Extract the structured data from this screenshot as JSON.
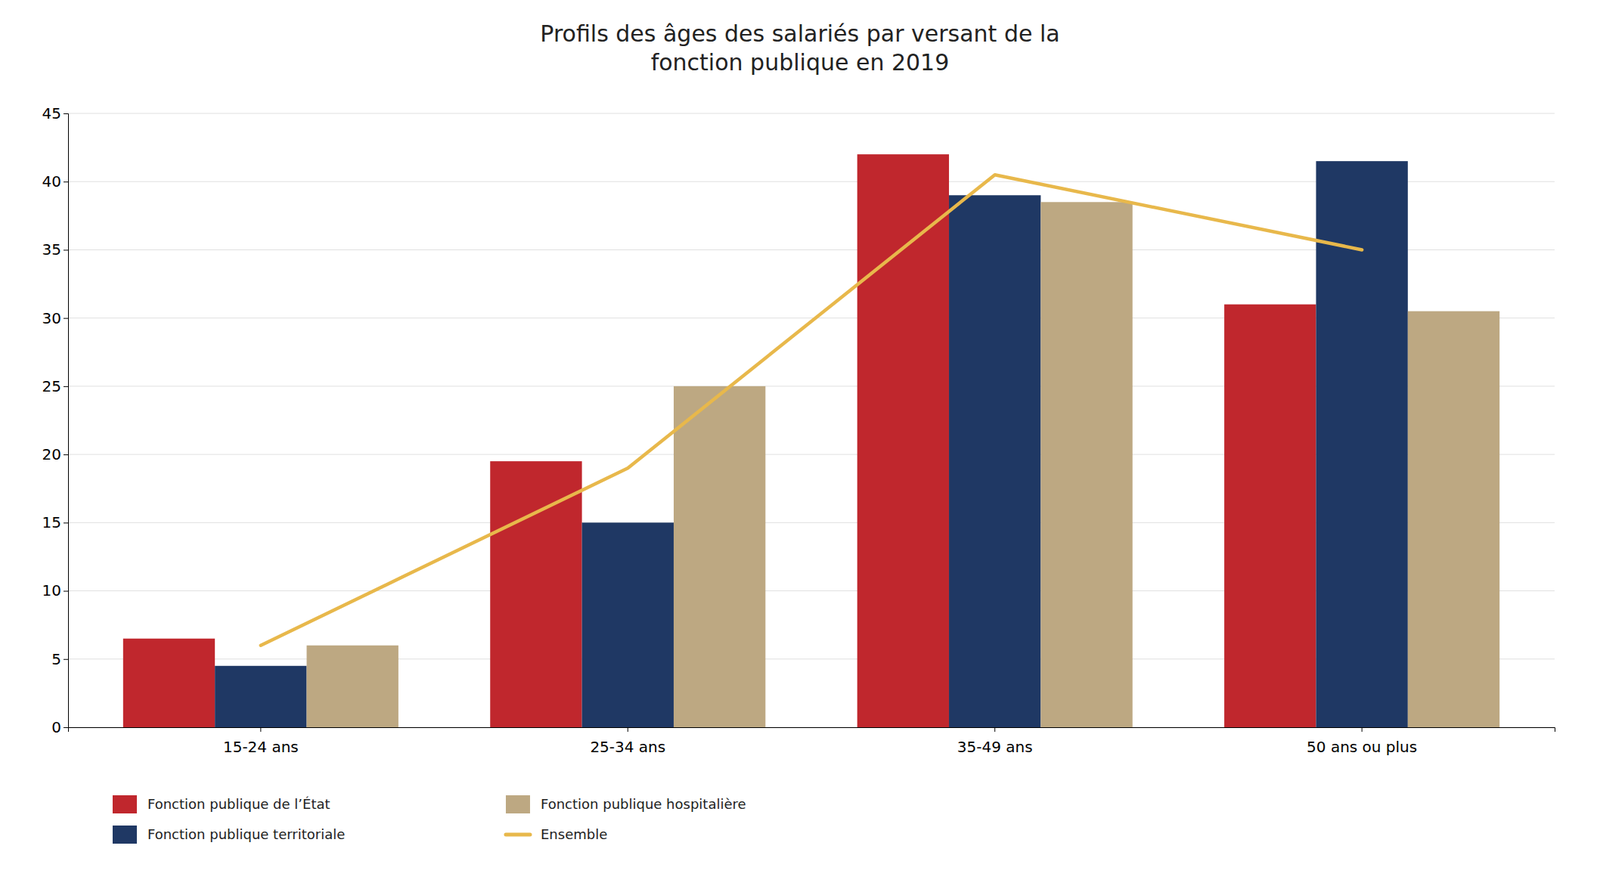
{
  "chart_data": {
    "type": "bar",
    "title": "Profils des âges des salariés par versant de la\nfonction publique en 2019",
    "categories": [
      "15-24 ans",
      "25-34 ans",
      "35-49 ans",
      "50 ans ou plus"
    ],
    "series": [
      {
        "name": "Fonction publique de l’État",
        "color": "#C0272D",
        "values": [
          6.5,
          19.5,
          42,
          31
        ]
      },
      {
        "name": "Fonction publique territoriale",
        "color": "#1F3864",
        "values": [
          4.5,
          15,
          39,
          41.5
        ]
      },
      {
        "name": "Fonction publique hospitalière",
        "color": "#BDA882",
        "values": [
          6,
          25,
          38.5,
          30.5
        ]
      },
      {
        "name": "Ensemble",
        "type": "line",
        "color": "#E8B84B",
        "values": [
          6,
          19,
          40.5,
          35
        ]
      }
    ],
    "ylim": [
      0,
      45
    ],
    "yticks": [
      0,
      5,
      10,
      15,
      20,
      25,
      30,
      35,
      40,
      45
    ],
    "grid": true,
    "legend": "bottom"
  }
}
